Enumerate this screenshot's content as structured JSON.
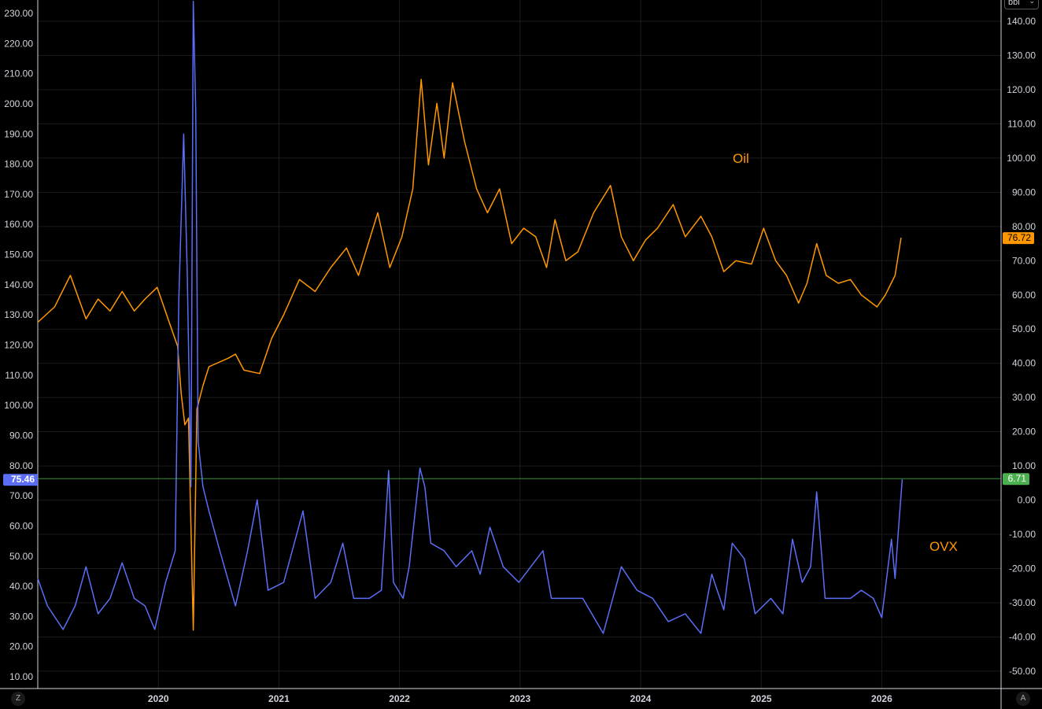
{
  "unit_dropdown": {
    "label": "bbl"
  },
  "buttons": {
    "left": "Z",
    "right": "A"
  },
  "chart_data": {
    "type": "line",
    "x_ticks": [
      "2020",
      "2021",
      "2022",
      "2023",
      "2024",
      "2025",
      "2026"
    ],
    "xlim": [
      2019.0,
      2027.0
    ],
    "left_axis": {
      "ylim": [
        6,
        235
      ],
      "ticks": [
        "230.00",
        "220.00",
        "210.00",
        "200.00",
        "190.00",
        "180.00",
        "170.00",
        "160.00",
        "150.00",
        "140.00",
        "130.00",
        "120.00",
        "110.00",
        "100.00",
        "90.00",
        "80.00",
        "70.00",
        "60.00",
        "50.00",
        "40.00",
        "30.00",
        "20.00",
        "10.00"
      ]
    },
    "right_axis": {
      "ylim": [
        -55,
        146
      ],
      "ticks": [
        "140.00",
        "130.00",
        "120.00",
        "110.00",
        "100.00",
        "90.00",
        "80.00",
        "70.00",
        "60.00",
        "50.00",
        "40.00",
        "30.00",
        "20.00",
        "10.00",
        "0.00",
        "-10.00",
        "-20.00",
        "-30.00",
        "-40.00",
        "-50.00"
      ]
    },
    "grid": true,
    "series": [
      {
        "name": "Oil",
        "axis": "right",
        "color": "#ff9800",
        "last_value": "76.72",
        "points": [
          [
            2019.0,
            52
          ],
          [
            2019.14,
            56.5
          ],
          [
            2019.27,
            65.7
          ],
          [
            2019.4,
            53
          ],
          [
            2019.5,
            58.8
          ],
          [
            2019.6,
            55.3
          ],
          [
            2019.7,
            61
          ],
          [
            2019.8,
            55.3
          ],
          [
            2019.89,
            58.8
          ],
          [
            2019.99,
            62.2
          ],
          [
            2020.09,
            52
          ],
          [
            2020.16,
            45
          ],
          [
            2020.19,
            31
          ],
          [
            2020.22,
            22
          ],
          [
            2020.25,
            24
          ],
          [
            2020.29,
            -38
          ],
          [
            2020.32,
            26.6
          ],
          [
            2020.37,
            33.5
          ],
          [
            2020.42,
            39
          ],
          [
            2020.58,
            41.5
          ],
          [
            2020.64,
            42.7
          ],
          [
            2020.71,
            38
          ],
          [
            2020.84,
            37
          ],
          [
            2020.94,
            47.3
          ],
          [
            2021.04,
            54.2
          ],
          [
            2021.17,
            64.5
          ],
          [
            2021.3,
            61
          ],
          [
            2021.43,
            68
          ],
          [
            2021.56,
            73.7
          ],
          [
            2021.66,
            65.7
          ],
          [
            2021.82,
            84
          ],
          [
            2021.92,
            68
          ],
          [
            2022.02,
            77
          ],
          [
            2022.11,
            91
          ],
          [
            2022.18,
            123
          ],
          [
            2022.24,
            98
          ],
          [
            2022.31,
            116
          ],
          [
            2022.37,
            100
          ],
          [
            2022.44,
            122
          ],
          [
            2022.54,
            104.8
          ],
          [
            2022.64,
            91
          ],
          [
            2022.73,
            84
          ],
          [
            2022.83,
            91
          ],
          [
            2022.93,
            75
          ],
          [
            2023.03,
            79.5
          ],
          [
            2023.13,
            77
          ],
          [
            2023.22,
            68
          ],
          [
            2023.29,
            82
          ],
          [
            2023.38,
            70
          ],
          [
            2023.48,
            72.6
          ],
          [
            2023.61,
            84
          ],
          [
            2023.75,
            92
          ],
          [
            2023.84,
            77
          ],
          [
            2023.94,
            70
          ],
          [
            2024.04,
            76
          ],
          [
            2024.14,
            79.5
          ],
          [
            2024.27,
            86.4
          ],
          [
            2024.37,
            77
          ],
          [
            2024.5,
            83
          ],
          [
            2024.59,
            77
          ],
          [
            2024.69,
            66.8
          ],
          [
            2024.79,
            70
          ],
          [
            2024.92,
            69
          ],
          [
            2025.02,
            79.5
          ],
          [
            2025.12,
            70
          ],
          [
            2025.21,
            65.7
          ],
          [
            2025.31,
            57.6
          ],
          [
            2025.38,
            63.4
          ],
          [
            2025.46,
            75
          ],
          [
            2025.54,
            65.7
          ],
          [
            2025.64,
            63.4
          ],
          [
            2025.74,
            64.5
          ],
          [
            2025.83,
            60
          ],
          [
            2025.96,
            56.5
          ],
          [
            2026.03,
            60
          ],
          [
            2026.11,
            65.7
          ],
          [
            2026.16,
            76.72
          ]
        ]
      },
      {
        "name": "OVX",
        "axis": "left",
        "color": "#5b6ef5",
        "last_value": "75.46",
        "points": [
          [
            2019.0,
            42.6
          ],
          [
            2019.08,
            33.5
          ],
          [
            2019.21,
            25.7
          ],
          [
            2019.31,
            33.5
          ],
          [
            2019.4,
            46.5
          ],
          [
            2019.5,
            30.9
          ],
          [
            2019.6,
            36
          ],
          [
            2019.7,
            47.8
          ],
          [
            2019.8,
            36
          ],
          [
            2019.89,
            33.5
          ],
          [
            2019.97,
            25.7
          ],
          [
            2020.06,
            41.3
          ],
          [
            2020.14,
            51.8
          ],
          [
            2020.17,
            135
          ],
          [
            2020.21,
            190
          ],
          [
            2020.24,
            143
          ],
          [
            2020.27,
            73
          ],
          [
            2020.29,
            234
          ],
          [
            2020.31,
            198
          ],
          [
            2020.33,
            88
          ],
          [
            2020.37,
            73
          ],
          [
            2020.42,
            65
          ],
          [
            2020.51,
            51.8
          ],
          [
            2020.64,
            33.5
          ],
          [
            2020.74,
            51.8
          ],
          [
            2020.82,
            68.7
          ],
          [
            2020.91,
            38.7
          ],
          [
            2021.04,
            41.3
          ],
          [
            2021.2,
            65
          ],
          [
            2021.3,
            36
          ],
          [
            2021.43,
            41.3
          ],
          [
            2021.53,
            54.3
          ],
          [
            2021.62,
            36
          ],
          [
            2021.75,
            36
          ],
          [
            2021.85,
            38.7
          ],
          [
            2021.91,
            78.4
          ],
          [
            2021.95,
            41.3
          ],
          [
            2022.03,
            36
          ],
          [
            2022.08,
            46.5
          ],
          [
            2022.17,
            79.2
          ],
          [
            2022.21,
            73
          ],
          [
            2022.26,
            54.3
          ],
          [
            2022.37,
            51.8
          ],
          [
            2022.47,
            46.5
          ],
          [
            2022.6,
            51.8
          ],
          [
            2022.67,
            44
          ],
          [
            2022.75,
            59.6
          ],
          [
            2022.86,
            46.5
          ],
          [
            2022.99,
            41.3
          ],
          [
            2023.19,
            51.8
          ],
          [
            2023.26,
            36
          ],
          [
            2023.39,
            36
          ],
          [
            2023.52,
            36
          ],
          [
            2023.69,
            24.4
          ],
          [
            2023.84,
            46.5
          ],
          [
            2023.97,
            38.7
          ],
          [
            2024.1,
            36
          ],
          [
            2024.23,
            28.3
          ],
          [
            2024.37,
            30.9
          ],
          [
            2024.5,
            24.4
          ],
          [
            2024.59,
            44
          ],
          [
            2024.69,
            32.2
          ],
          [
            2024.76,
            54.3
          ],
          [
            2024.86,
            49.1
          ],
          [
            2024.95,
            30.9
          ],
          [
            2025.08,
            36
          ],
          [
            2025.18,
            30.9
          ],
          [
            2025.26,
            55.6
          ],
          [
            2025.34,
            41.3
          ],
          [
            2025.41,
            46.5
          ],
          [
            2025.46,
            71.3
          ],
          [
            2025.53,
            36
          ],
          [
            2025.64,
            36
          ],
          [
            2025.74,
            36
          ],
          [
            2025.83,
            38.7
          ],
          [
            2025.93,
            36
          ],
          [
            2026.0,
            29.6
          ],
          [
            2026.08,
            55.6
          ],
          [
            2026.11,
            42.6
          ],
          [
            2026.14,
            59.6
          ],
          [
            2026.17,
            75.46
          ]
        ]
      }
    ],
    "annotations": {
      "oil_label": "Oil",
      "ovx_label": "OVX",
      "crosshair_right_value": "6.71",
      "crosshair_color": "#4caf50"
    }
  }
}
